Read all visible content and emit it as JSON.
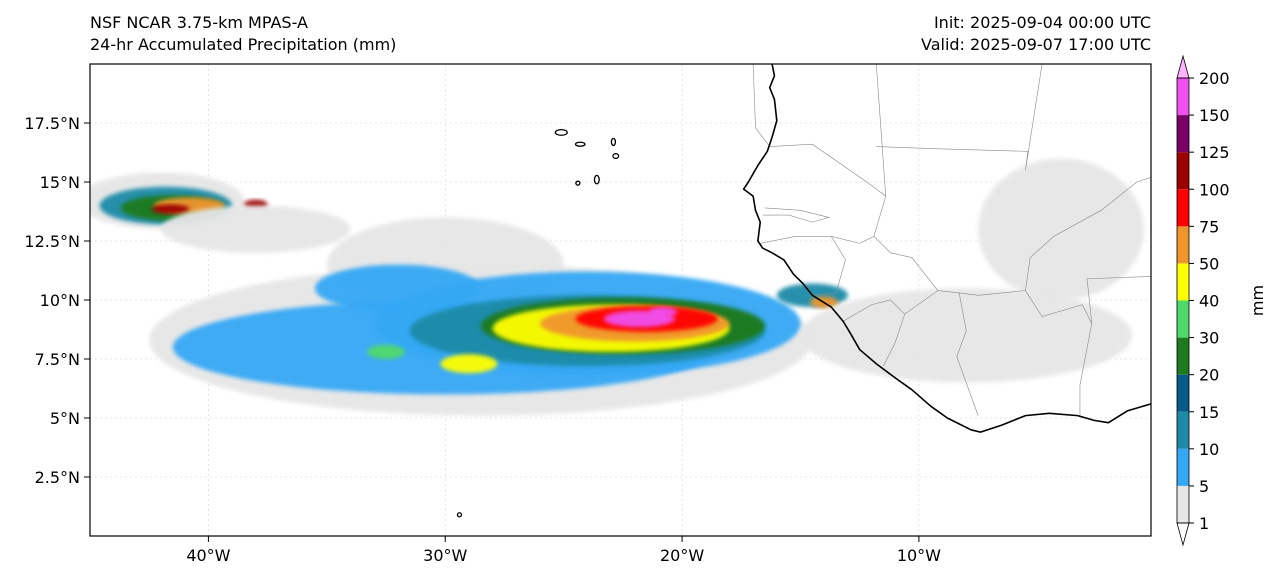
{
  "header": {
    "model_title": "NSF NCAR 3.75-km MPAS-A",
    "field_title": "24-hr Accumulated Precipitation (mm)",
    "init_label": "Init: 2025-09-04 00:00 UTC",
    "valid_label": "Valid: 2025-09-07 17:00 UTC"
  },
  "map": {
    "lon_range": [
      -45,
      -0.2
    ],
    "lat_range": [
      0,
      20
    ],
    "lon_ticks": [
      {
        "value": -40,
        "label": "40°W"
      },
      {
        "value": -30,
        "label": "30°W"
      },
      {
        "value": -20,
        "label": "20°W"
      },
      {
        "value": -10,
        "label": "10°W"
      }
    ],
    "lat_ticks": [
      {
        "value": 2.5,
        "label": "2.5°N"
      },
      {
        "value": 5,
        "label": "5°N"
      },
      {
        "value": 7.5,
        "label": "7.5°N"
      },
      {
        "value": 10,
        "label": "10°N"
      },
      {
        "value": 12.5,
        "label": "12.5°N"
      },
      {
        "value": 15,
        "label": "15°N"
      },
      {
        "value": 17.5,
        "label": "17.5°N"
      }
    ],
    "gridlines": true,
    "coastline": [
      [
        -16.2,
        20
      ],
      [
        -16.1,
        19.5
      ],
      [
        -16.3,
        19.0
      ],
      [
        -16.1,
        18.5
      ],
      [
        -16.0,
        17.6
      ],
      [
        -16.2,
        16.9
      ],
      [
        -16.4,
        16.3
      ],
      [
        -16.8,
        15.7
      ],
      [
        -17.2,
        15.0
      ],
      [
        -17.4,
        14.7
      ],
      [
        -17.0,
        14.4
      ],
      [
        -16.9,
        13.8
      ],
      [
        -16.7,
        13.3
      ],
      [
        -16.8,
        12.5
      ],
      [
        -16.6,
        12.2
      ],
      [
        -16.2,
        12.0
      ],
      [
        -15.7,
        11.7
      ],
      [
        -15.3,
        11.1
      ],
      [
        -14.9,
        10.7
      ],
      [
        -14.5,
        10.2
      ],
      [
        -13.7,
        9.7
      ],
      [
        -13.2,
        9.1
      ],
      [
        -12.9,
        8.6
      ],
      [
        -12.5,
        7.9
      ],
      [
        -11.8,
        7.3
      ],
      [
        -11.0,
        6.7
      ],
      [
        -10.3,
        6.2
      ],
      [
        -9.5,
        5.5
      ],
      [
        -8.8,
        5.0
      ],
      [
        -7.8,
        4.5
      ],
      [
        -7.4,
        4.4
      ],
      [
        -6.5,
        4.7
      ],
      [
        -5.5,
        5.1
      ],
      [
        -4.5,
        5.2
      ],
      [
        -3.3,
        5.1
      ],
      [
        -2.6,
        4.9
      ],
      [
        -2.0,
        4.8
      ],
      [
        -1.2,
        5.3
      ],
      [
        -0.2,
        5.6
      ]
    ],
    "islands": [
      {
        "name": "Santo Antão",
        "lon": -25.1,
        "lat": 17.1,
        "rx": 0.25,
        "ry": 0.12
      },
      {
        "name": "São Nicolau",
        "lon": -24.3,
        "lat": 16.6,
        "rx": 0.2,
        "ry": 0.05
      },
      {
        "name": "Sal",
        "lon": -22.9,
        "lat": 16.7,
        "rx": 0.08,
        "ry": 0.15
      },
      {
        "name": "Boa Vista",
        "lon": -22.8,
        "lat": 16.1,
        "rx": 0.12,
        "ry": 0.1
      },
      {
        "name": "Santiago",
        "lon": -23.6,
        "lat": 15.1,
        "rx": 0.1,
        "ry": 0.18
      },
      {
        "name": "Fogo",
        "lon": -24.4,
        "lat": 14.95,
        "rx": 0.08,
        "ry": 0.08
      },
      {
        "name": "Saint Peter and Paul Rocks",
        "lon": -29.4,
        "lat": 0.9,
        "rx": 0.04,
        "ry": 0.04
      }
    ],
    "borders": [
      [
        [
          -17.0,
          20
        ],
        [
          -16.9,
          17.3
        ],
        [
          -16.3,
          16.5
        ]
      ],
      [
        [
          -16.3,
          16.5
        ],
        [
          -14.5,
          16.6
        ],
        [
          -12.2,
          15.0
        ],
        [
          -11.4,
          14.4
        ],
        [
          -11.9,
          12.7
        ],
        [
          -12.5,
          12.4
        ],
        [
          -13.7,
          12.7
        ],
        [
          -15.2,
          12.7
        ],
        [
          -16.7,
          12.4
        ]
      ],
      [
        [
          -16.6,
          13.6
        ],
        [
          -15.5,
          13.6
        ],
        [
          -14.5,
          13.3
        ],
        [
          -13.8,
          13.5
        ],
        [
          -15.0,
          13.8
        ],
        [
          -16.5,
          13.9
        ]
      ],
      [
        [
          -13.7,
          12.7
        ],
        [
          -13.1,
          11.7
        ],
        [
          -13.5,
          10.3
        ],
        [
          -14.6,
          10.2
        ]
      ],
      [
        [
          -11.9,
          12.7
        ],
        [
          -11.2,
          12.0
        ],
        [
          -10.3,
          11.8
        ],
        [
          -9.2,
          10.4
        ],
        [
          -10.6,
          9.4
        ],
        [
          -11.2,
          10.0
        ],
        [
          -12.0,
          9.8
        ],
        [
          -13.2,
          9.1
        ]
      ],
      [
        [
          -10.6,
          9.4
        ],
        [
          -11.0,
          8.2
        ],
        [
          -11.5,
          7.2
        ]
      ],
      [
        [
          -9.2,
          10.4
        ],
        [
          -8.3,
          10.3
        ],
        [
          -8.0,
          8.7
        ],
        [
          -8.4,
          7.6
        ],
        [
          -7.5,
          5.1
        ]
      ],
      [
        [
          -11.4,
          14.4
        ],
        [
          -11.8,
          20
        ]
      ],
      [
        [
          -11.8,
          16.5
        ],
        [
          -9.0,
          16.4
        ],
        [
          -5.4,
          16.3
        ],
        [
          -5.5,
          15.5
        ],
        [
          -4.8,
          20
        ]
      ],
      [
        [
          -8.3,
          10.3
        ],
        [
          -7.5,
          10.2
        ],
        [
          -5.5,
          10.4
        ],
        [
          -4.8,
          9.3
        ],
        [
          -3.1,
          9.8
        ],
        [
          -2.7,
          9.0
        ],
        [
          -3.2,
          6.4
        ],
        [
          -3.2,
          5.1
        ]
      ],
      [
        [
          -5.5,
          10.4
        ],
        [
          -5.3,
          11.8
        ],
        [
          -4.3,
          12.7
        ],
        [
          -2.3,
          13.8
        ],
        [
          -0.8,
          15.0
        ],
        [
          -0.2,
          15.2
        ]
      ],
      [
        [
          -2.7,
          9.0
        ],
        [
          -2.9,
          10.9
        ],
        [
          -0.2,
          11.0
        ]
      ],
      [
        [
          -0.2,
          11.3
        ],
        [
          -0.2,
          10.9
        ]
      ]
    ],
    "land_color": "#ffffff",
    "ocean_color": "#ffffff"
  },
  "chart_data": {
    "type": "heatmap",
    "title": "24-hr Accumulated Precipitation (mm)",
    "units": "mm",
    "colorbar": {
      "label": "mm",
      "levels": [
        1,
        5,
        10,
        15,
        20,
        30,
        40,
        50,
        75,
        100,
        125,
        150,
        200
      ],
      "colors": [
        "#e6e6e6",
        "#35a8f5",
        "#1d8ba8",
        "#055a88",
        "#1f7a1f",
        "#4fd96a",
        "#ffff00",
        "#f0952e",
        "#ff0000",
        "#9c0000",
        "#7a0066",
        "#f050f0",
        "#ffb3ff"
      ],
      "extend": "both"
    },
    "precip_regions": [
      {
        "lon": -42,
        "lat": 14.2,
        "rx": 3.5,
        "ry": 1.2,
        "value": 3
      },
      {
        "lon": -41.8,
        "lat": 14.0,
        "rx": 2.8,
        "ry": 0.8,
        "value": 12
      },
      {
        "lon": -41.5,
        "lat": 13.9,
        "rx": 2.2,
        "ry": 0.55,
        "value": 25
      },
      {
        "lon": -40.8,
        "lat": 14.0,
        "rx": 1.5,
        "ry": 0.35,
        "value": 60
      },
      {
        "lon": -41.6,
        "lat": 13.85,
        "rx": 0.8,
        "ry": 0.2,
        "value": 110
      },
      {
        "lon": -38,
        "lat": 14.05,
        "rx": 0.5,
        "ry": 0.2,
        "value": 110
      },
      {
        "lon": -28.5,
        "lat": 8.3,
        "rx": 14.0,
        "ry": 3.2,
        "value": 3
      },
      {
        "lon": -38,
        "lat": 13.0,
        "rx": 4.0,
        "ry": 1.0,
        "value": 3
      },
      {
        "lon": -30,
        "lat": 11.5,
        "rx": 5.0,
        "ry": 2.0,
        "value": 3
      },
      {
        "lon": -30,
        "lat": 8.0,
        "rx": 11.5,
        "ry": 2.0,
        "value": 7
      },
      {
        "lon": -24,
        "lat": 9.0,
        "rx": 9.0,
        "ry": 2.2,
        "value": 7
      },
      {
        "lon": -32,
        "lat": 10.5,
        "rx": 3.5,
        "ry": 1.0,
        "value": 7
      },
      {
        "lon": -24,
        "lat": 8.7,
        "rx": 7.5,
        "ry": 1.5,
        "value": 12
      },
      {
        "lon": -22.5,
        "lat": 8.9,
        "rx": 6.0,
        "ry": 1.2,
        "value": 25
      },
      {
        "lon": -23.0,
        "lat": 8.8,
        "rx": 5.0,
        "ry": 1.0,
        "value": 45
      },
      {
        "lon": -22.0,
        "lat": 9.0,
        "rx": 4.0,
        "ry": 0.75,
        "value": 60
      },
      {
        "lon": -21.5,
        "lat": 9.2,
        "rx": 3.0,
        "ry": 0.55,
        "value": 90
      },
      {
        "lon": -21.8,
        "lat": 9.2,
        "rx": 1.5,
        "ry": 0.35,
        "value": 160
      },
      {
        "lon": -20.8,
        "lat": 9.5,
        "rx": 0.6,
        "ry": 0.2,
        "value": 160
      },
      {
        "lon": -29,
        "lat": 7.3,
        "rx": 1.2,
        "ry": 0.4,
        "value": 45
      },
      {
        "lon": -32.5,
        "lat": 7.8,
        "rx": 0.8,
        "ry": 0.3,
        "value": 35
      },
      {
        "lon": -14.5,
        "lat": 10.2,
        "rx": 1.5,
        "ry": 0.5,
        "value": 12
      },
      {
        "lon": -14.0,
        "lat": 9.9,
        "rx": 0.6,
        "ry": 0.25,
        "value": 60
      },
      {
        "lon": -8,
        "lat": 8.5,
        "rx": 7.0,
        "ry": 2.0,
        "value": 3
      },
      {
        "lon": -4,
        "lat": 13.0,
        "rx": 3.5,
        "ry": 3.0,
        "value": 3
      }
    ]
  }
}
